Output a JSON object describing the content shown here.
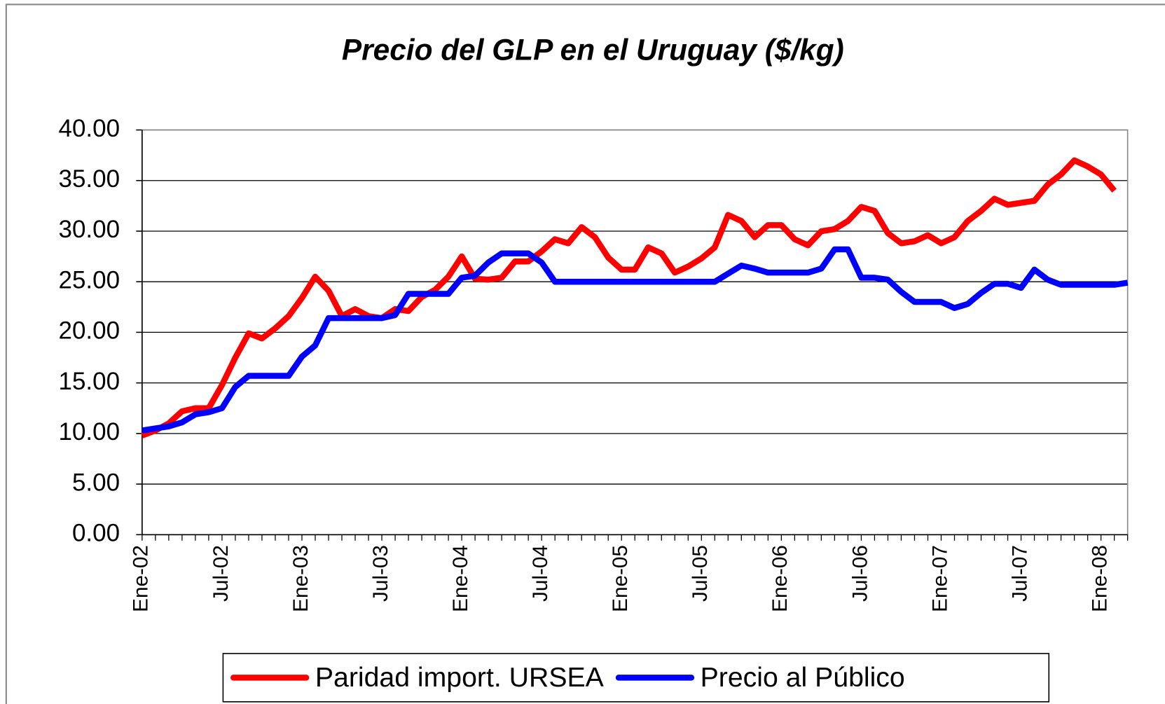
{
  "chart_data": {
    "type": "line",
    "title": "Precio del GLP en el Uruguay ($/kg)",
    "categories": [
      "Ene-02",
      null,
      null,
      null,
      null,
      null,
      "Jul-02",
      null,
      null,
      null,
      null,
      null,
      "Ene-03",
      null,
      null,
      null,
      null,
      null,
      "Jul-03",
      null,
      null,
      null,
      null,
      null,
      "Ene-04",
      null,
      null,
      null,
      null,
      null,
      "Jul-04",
      null,
      null,
      null,
      null,
      null,
      "Ene-05",
      null,
      null,
      null,
      null,
      null,
      "Jul-05",
      null,
      null,
      null,
      null,
      null,
      "Ene-06",
      null,
      null,
      null,
      null,
      null,
      "Jul-06",
      null,
      null,
      null,
      null,
      null,
      "Ene-07",
      null,
      null,
      null,
      null,
      null,
      "Jul-07",
      null,
      null,
      null,
      null,
      null,
      "Ene-08",
      null,
      null
    ],
    "series": [
      {
        "name": "Paridad import. URSEA",
        "color": "#ff0000",
        "values": [
          9.8,
          10.3,
          11.0,
          12.2,
          12.5,
          12.5,
          14.8,
          17.5,
          19.9,
          19.4,
          20.4,
          21.6,
          23.4,
          25.5,
          24.1,
          21.6,
          22.3,
          21.6,
          21.4,
          22.3,
          22.1,
          23.5,
          24.2,
          25.5,
          27.5,
          25.3,
          25.2,
          25.4,
          27.0,
          27.0,
          28.0,
          29.2,
          28.8,
          30.4,
          29.4,
          27.4,
          26.2,
          26.2,
          28.4,
          27.8,
          25.9,
          26.5,
          27.3,
          28.4,
          31.6,
          31.0,
          29.4,
          30.6,
          30.6,
          29.2,
          28.6,
          30.0,
          30.2,
          31.0,
          32.4,
          32.0,
          29.8,
          28.8,
          29.0,
          29.6,
          28.8,
          29.4,
          31.0,
          32.0,
          33.2,
          32.6,
          32.8,
          33.0,
          34.6,
          35.6,
          37.0,
          36.4,
          35.6,
          34.0,
          null
        ]
      },
      {
        "name": "Precio al Público",
        "color": "#0000ff",
        "values": [
          10.3,
          10.5,
          10.7,
          11.1,
          11.9,
          12.1,
          12.5,
          14.6,
          15.7,
          15.7,
          15.7,
          15.7,
          17.6,
          18.7,
          21.4,
          21.4,
          21.4,
          21.4,
          21.4,
          21.7,
          23.8,
          23.8,
          23.8,
          23.8,
          25.4,
          25.6,
          26.9,
          27.8,
          27.8,
          27.8,
          26.9,
          25.0,
          25.0,
          25.0,
          25.0,
          25.0,
          25.0,
          25.0,
          25.0,
          25.0,
          25.0,
          25.0,
          25.0,
          25.0,
          25.8,
          26.6,
          26.3,
          25.9,
          25.9,
          25.9,
          25.9,
          26.3,
          28.2,
          28.2,
          25.4,
          25.4,
          25.2,
          24.0,
          23.0,
          23.0,
          23.0,
          22.4,
          22.8,
          23.9,
          24.8,
          24.8,
          24.4,
          26.2,
          25.2,
          24.7,
          24.7,
          24.7,
          24.7,
          24.7,
          24.9
        ]
      }
    ],
    "ylim": [
      0,
      40
    ],
    "yticks": [
      {
        "value": 0,
        "label": "0.00"
      },
      {
        "value": 5,
        "label": "5.00"
      },
      {
        "value": 10,
        "label": "10.00"
      },
      {
        "value": 15,
        "label": "15.00"
      },
      {
        "value": 20,
        "label": "20.00"
      },
      {
        "value": 25,
        "label": "25.00"
      },
      {
        "value": 30,
        "label": "30.00"
      },
      {
        "value": 35,
        "label": "35.00"
      },
      {
        "value": 40,
        "label": "40.00"
      }
    ],
    "grid": true,
    "legend": "bottom"
  }
}
